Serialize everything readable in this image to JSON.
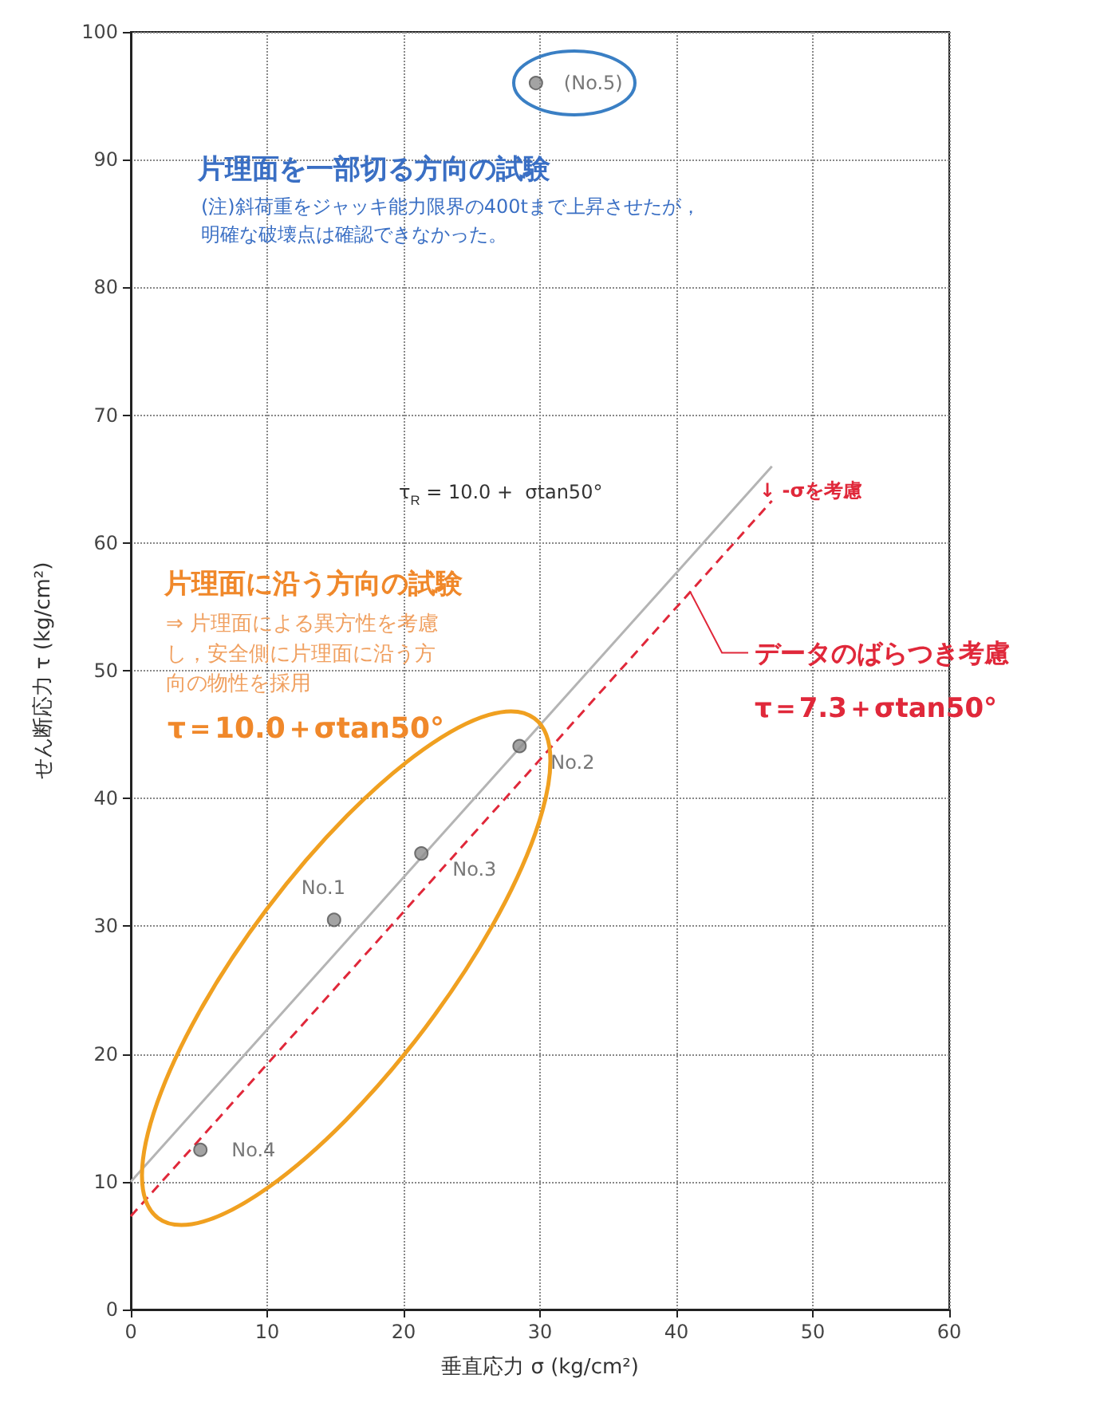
{
  "chart_data": {
    "type": "scatter",
    "xlabel": "垂直応力 σ (kg/cm²)",
    "ylabel": "せん断応力 τ (kg/cm²)",
    "xlim": [
      0,
      60
    ],
    "xticks": [
      0,
      10,
      20,
      30,
      40,
      50,
      60
    ],
    "ylim": [
      0,
      100
    ],
    "yticks": [
      0,
      10,
      20,
      30,
      40,
      50,
      60,
      70,
      80,
      90,
      100
    ],
    "grid": true,
    "series": [
      {
        "type": "line",
        "color": "#b4b4b4",
        "x": [
          0,
          47
        ],
        "values": [
          10,
          66.0
        ],
        "line_style": "solid",
        "marker": "none"
      },
      {
        "type": "line",
        "color": "#e0283a",
        "x": [
          0,
          47
        ],
        "values": [
          7.3,
          63.3
        ],
        "line_style": "dashed",
        "marker": "none"
      },
      {
        "color": "#8c8c8c",
        "x": [
          14.9,
          28.5,
          21.3,
          5.1,
          29.7
        ],
        "values": [
          30.5,
          44.1,
          35.7,
          12.5,
          96
        ],
        "value_labels": [
          "No.1",
          "No.2",
          "No.3",
          "No.4",
          "(No.5)"
        ],
        "marker": "circle"
      }
    ],
    "annotations": [
      "片理面を一部切る方向の試験",
      "(注)斜荷重をジャッキ能力限界の400tまで上昇させたが，明確な破壊点は確認できなかった。",
      "τ$_{R}$ = 10.0 +  σtan50°",
      "↓ -σを考慮",
      "片理面に沿う方向の試験",
      "⇒ 片理面による異方性を考慮し，安全側に片理面に沿う方向の物性を採用",
      "τ＝10.0＋σtan50°",
      {
        "text": "データのばらつき考慮",
        "x": 41,
        "y": 56.2
      },
      "τ＝7.3＋σtan50°"
    ]
  }
}
